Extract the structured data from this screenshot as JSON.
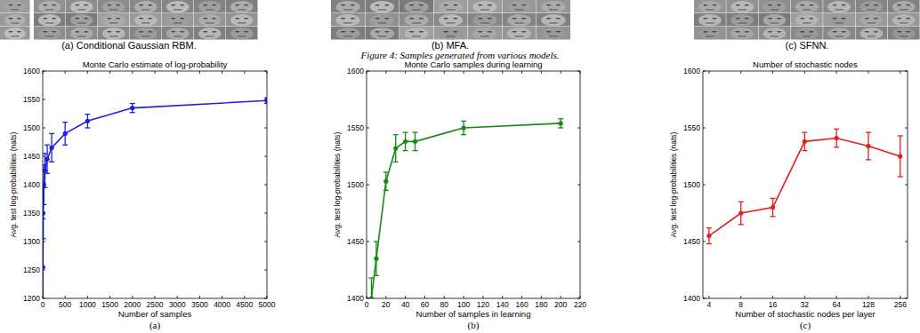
{
  "figure_caption": "Figure 4: Samples generated from various models.",
  "image_panels": [
    {
      "caption": "(a) Conditional Gaussian RBM."
    },
    {
      "caption": "(b) MFA."
    },
    {
      "caption": "(c) SFNN."
    }
  ],
  "chart_data": [
    {
      "type": "line",
      "title": "Monte Carlo estimate of log-probability",
      "panel_label": "(a)",
      "x_label": "Number of samples",
      "y_label": "Avg. test log-probabilities (nats)",
      "x": [
        5,
        10,
        25,
        50,
        100,
        200,
        500,
        1000,
        2000,
        5000
      ],
      "values": [
        1255,
        1350,
        1400,
        1425,
        1445,
        1465,
        1490,
        1512,
        1535,
        1548
      ],
      "errors": [
        85,
        45,
        35,
        30,
        25,
        25,
        20,
        12,
        8,
        5
      ],
      "color": "#1f1fe0",
      "marker": "circle",
      "grid": false,
      "xlim": [
        0,
        5000
      ],
      "xticks": [
        0,
        500,
        1000,
        1500,
        2000,
        2500,
        3000,
        3500,
        4000,
        4500,
        5000
      ],
      "ylim": [
        1200,
        1600
      ],
      "yticks": [
        1200,
        1250,
        1300,
        1350,
        1400,
        1450,
        1500,
        1550,
        1600
      ]
    },
    {
      "type": "line",
      "title": "Monte Carlo samples during learning",
      "panel_label": "(b)",
      "x_label": "Number of samples in learning",
      "y_label": "Avg. test log-probabilities (nats)",
      "x": [
        5,
        10,
        20,
        30,
        40,
        50,
        100,
        200
      ],
      "values": [
        1400,
        1435,
        1503,
        1532,
        1538,
        1538,
        1550,
        1554
      ],
      "errors": [
        18,
        15,
        8,
        12,
        8,
        8,
        6,
        4
      ],
      "color": "#158a15",
      "marker": "circle",
      "grid": false,
      "xlim": [
        0,
        220
      ],
      "xticks": [
        0,
        20,
        40,
        60,
        80,
        100,
        120,
        140,
        160,
        180,
        200,
        220
      ],
      "ylim": [
        1400,
        1600
      ],
      "yticks": [
        1400,
        1450,
        1500,
        1550,
        1600
      ]
    },
    {
      "type": "line",
      "title": "Number of stochastic nodes",
      "panel_label": "(c)",
      "x_label": "Number of stochastic nodes per layer",
      "y_label": "Avg. test log-probabilities (nats)",
      "x": [
        4,
        8,
        16,
        32,
        64,
        128,
        256
      ],
      "values": [
        1455,
        1475,
        1480,
        1538,
        1541,
        1534,
        1525
      ],
      "errors": [
        7,
        10,
        8,
        8,
        8,
        12,
        18
      ],
      "color": "#e01f1f",
      "marker": "circle",
      "grid": false,
      "log": "x",
      "xlim": [
        3.5,
        300
      ],
      "xticks": [
        4,
        8,
        16,
        32,
        64,
        128,
        256
      ],
      "ylim": [
        1400,
        1600
      ],
      "yticks": [
        1400,
        1450,
        1500,
        1550,
        1600
      ]
    }
  ]
}
